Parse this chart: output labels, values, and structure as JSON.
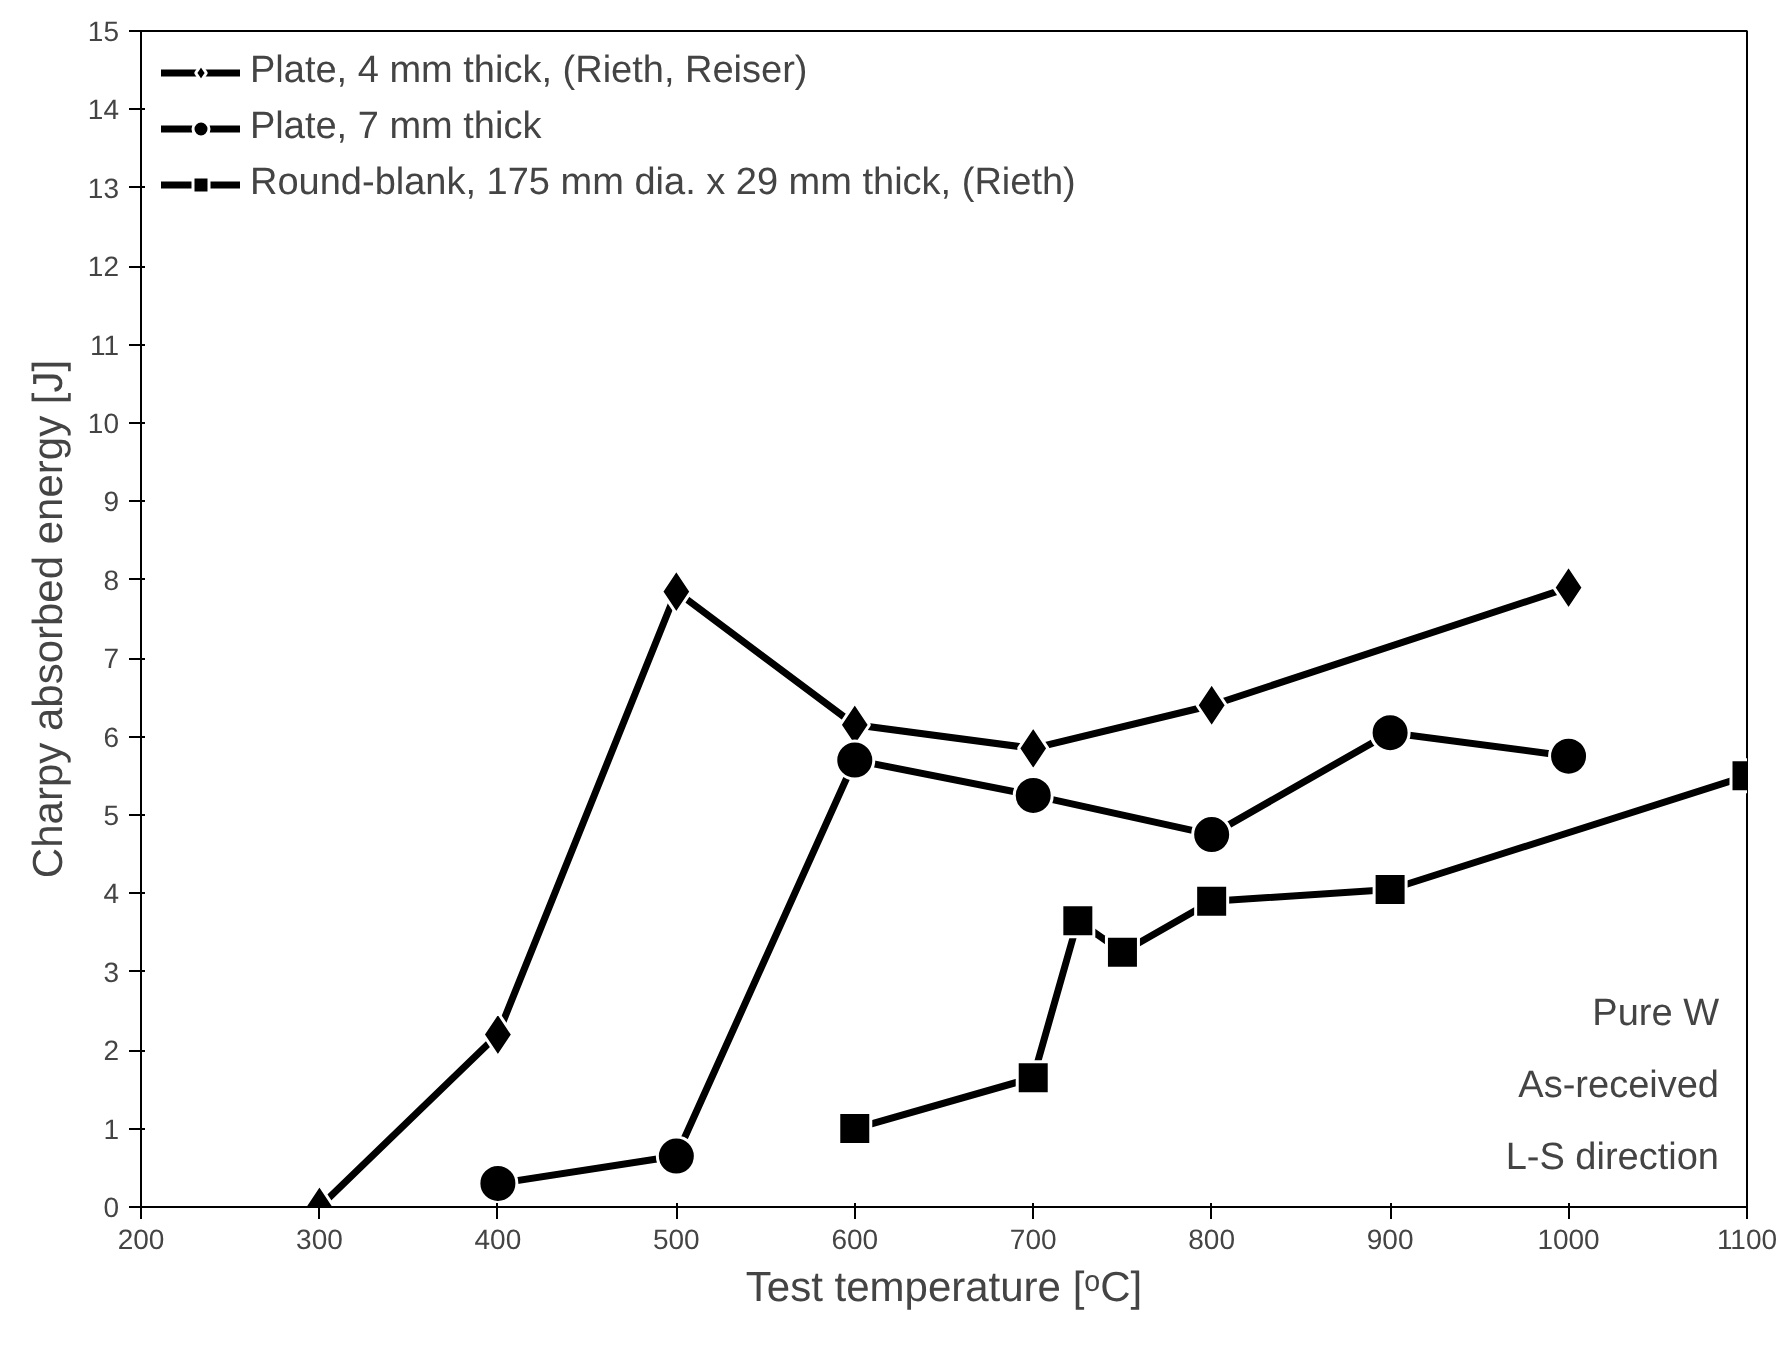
{
  "chart_data": {
    "type": "line",
    "xlabel": "Test temperature [ᵒC]",
    "ylabel": "Charpy absorbed energy [J]",
    "xlim": [
      200,
      1100
    ],
    "xticks": [
      200,
      300,
      400,
      500,
      600,
      700,
      800,
      900,
      1000,
      1100
    ],
    "ylim": [
      0,
      15
    ],
    "yticks": [
      0,
      1,
      2,
      3,
      4,
      5,
      6,
      7,
      8,
      9,
      10,
      11,
      12,
      13,
      14,
      15
    ],
    "grid": false,
    "legend": "top left",
    "line_style": "solid",
    "series": [
      {
        "name": "Plate, 4 mm thick, (Rieth, Reiser)",
        "color": "#000000",
        "marker": "diamond",
        "x": [
          300,
          400,
          500,
          600,
          700,
          800,
          1000
        ],
        "values": [
          0,
          2.2,
          7.85,
          6.15,
          5.85,
          6.4,
          7.9
        ]
      },
      {
        "name": "Plate, 7 mm thick",
        "color": "#000000",
        "marker": "circle",
        "x": [
          400,
          500,
          600,
          700,
          800,
          900,
          1000
        ],
        "values": [
          0.3,
          0.65,
          5.7,
          5.25,
          4.75,
          6.05,
          5.75
        ]
      },
      {
        "name": "Round-blank, 175 mm dia. x 29 mm thick, (Rieth)",
        "color": "#000000",
        "marker": "square",
        "x": [
          600,
          700,
          725,
          750,
          800,
          900,
          1100
        ],
        "values": [
          1.0,
          1.65,
          3.65,
          3.25,
          3.9,
          4.05,
          5.5
        ]
      }
    ],
    "annotations": [
      "Pure W",
      "As-received",
      "L-S direction"
    ]
  }
}
